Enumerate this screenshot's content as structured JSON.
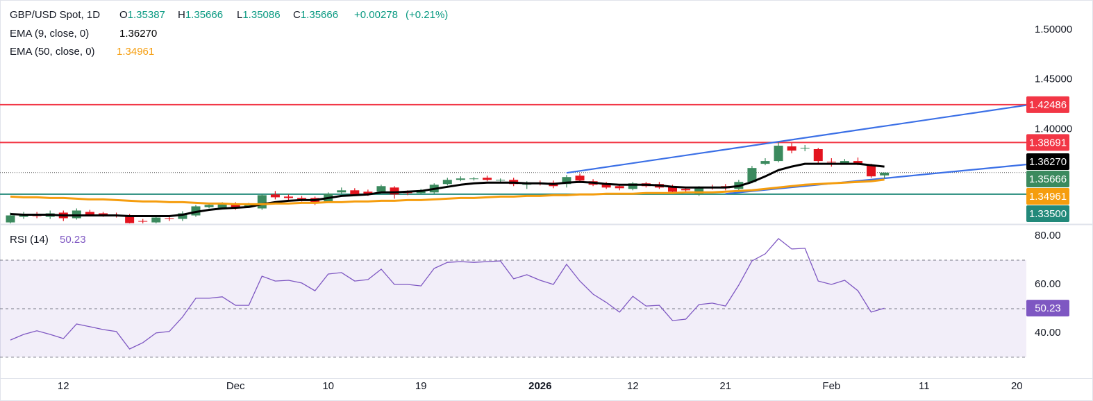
{
  "chart_data": [
    {
      "type": "candlestick",
      "symbol": "GBP/USD Spot, 1D",
      "ohlc_letters": [
        "O",
        "H",
        "L",
        "C"
      ],
      "change": "+0.00278",
      "change_pct": "(+0.21%)",
      "up_color": "#3b8a5e",
      "down_color": "#e3131e",
      "open": [
        1.3067,
        1.3123,
        1.3151,
        1.3123,
        1.3165,
        1.3109,
        1.3172,
        1.3158,
        1.3144,
        1.313,
        1.3081,
        1.3067,
        1.3109,
        1.3102,
        1.3137,
        1.3221,
        1.3214,
        1.3249,
        1.3228,
        1.3207,
        1.3347,
        1.3326,
        1.3312,
        1.3312,
        1.3277,
        1.3368,
        1.3389,
        1.3375,
        1.3375,
        1.3417,
        1.3368,
        1.3361,
        1.3368,
        1.3452,
        1.3494,
        1.3501,
        1.3515,
        1.3487,
        1.3494,
        1.3445,
        1.3466,
        1.3466,
        1.3452,
        1.3536,
        1.348,
        1.3459,
        1.3431,
        1.3403,
        1.3459,
        1.3452,
        1.3424,
        1.3403,
        1.3347,
        1.3417,
        1.3431,
        1.3403,
        1.3473,
        1.3655,
        1.3683,
        1.383,
        1.3809,
        1.3802,
        1.3676,
        1.3662,
        1.3683,
        1.3641,
        1.35387,
        null,
        null,
        null,
        null,
        null,
        null,
        null,
        null,
        null,
        null
      ],
      "high": [
        1.3165,
        1.3172,
        1.3172,
        1.3186,
        1.3186,
        1.3207,
        1.3193,
        1.3172,
        1.3165,
        1.3151,
        1.3102,
        1.313,
        1.313,
        1.3179,
        1.3242,
        1.3263,
        1.327,
        1.327,
        1.3263,
        1.3354,
        1.3382,
        1.3347,
        1.3333,
        1.3326,
        1.3368,
        1.3417,
        1.341,
        1.3396,
        1.3445,
        1.3431,
        1.3389,
        1.3403,
        1.3459,
        1.3515,
        1.3529,
        1.3522,
        1.3536,
        1.3508,
        1.3515,
        1.348,
        1.3487,
        1.3487,
        1.3543,
        1.3557,
        1.3501,
        1.3473,
        1.3445,
        1.3473,
        1.3473,
        1.3473,
        1.3445,
        1.3424,
        1.3431,
        1.3445,
        1.3452,
        1.3494,
        1.3634,
        1.3711,
        1.3872,
        1.3865,
        1.3844,
        1.3816,
        1.3711,
        1.3704,
        1.3718,
        1.3655,
        1.35666,
        null,
        null,
        null,
        null,
        null,
        null,
        null,
        null,
        null,
        null
      ],
      "low": [
        1.3046,
        1.3102,
        1.3109,
        1.3102,
        1.3081,
        1.3095,
        1.313,
        1.3123,
        1.3116,
        1.3046,
        1.3053,
        1.3053,
        1.3081,
        1.3081,
        1.3123,
        1.3207,
        1.32,
        1.3193,
        1.3214,
        1.3193,
        1.3298,
        1.3291,
        1.3277,
        1.3242,
        1.3263,
        1.3354,
        1.3333,
        1.3333,
        1.3361,
        1.3305,
        1.334,
        1.3347,
        1.3354,
        1.3438,
        1.348,
        1.3487,
        1.348,
        1.3473,
        1.3431,
        1.3403,
        1.3438,
        1.341,
        1.3417,
        1.3466,
        1.3431,
        1.3403,
        1.3389,
        1.3389,
        1.3417,
        1.3403,
        1.3361,
        1.3368,
        1.3333,
        1.3396,
        1.3389,
        1.3389,
        1.3459,
        1.3641,
        1.3669,
        1.376,
        1.3781,
        1.3662,
        1.3627,
        1.3655,
        1.3641,
        1.3515,
        1.35086,
        null,
        null,
        null,
        null,
        null,
        null,
        null,
        null,
        null,
        null
      ],
      "close": [
        1.3137,
        1.3151,
        1.313,
        1.3158,
        1.3109,
        1.3186,
        1.3144,
        1.3137,
        1.313,
        1.306,
        1.3074,
        1.3116,
        1.3102,
        1.3158,
        1.3228,
        1.3242,
        1.3249,
        1.3207,
        1.3249,
        1.334,
        1.3319,
        1.3312,
        1.3298,
        1.3263,
        1.3354,
        1.3389,
        1.3347,
        1.3354,
        1.3431,
        1.3347,
        1.3361,
        1.3382,
        1.3445,
        1.3494,
        1.3508,
        1.3508,
        1.3494,
        1.3494,
        1.3452,
        1.3459,
        1.3452,
        1.3431,
        1.3522,
        1.3487,
        1.3445,
        1.3417,
        1.341,
        1.3459,
        1.3431,
        1.3417,
        1.3375,
        1.3389,
        1.341,
        1.341,
        1.341,
        1.3473,
        1.3613,
        1.3683,
        1.3837,
        1.3788,
        1.3816,
        1.3683,
        1.3669,
        1.3683,
        1.3655,
        1.3529,
        1.35666,
        null,
        null,
        null,
        null,
        null,
        null,
        null,
        null,
        null,
        null
      ],
      "series": [
        {
          "name": "EMA (9, close, 0)",
          "color": "#000000",
          "last_label": "1.36270",
          "values": [
            1.3151,
            1.3144,
            1.3144,
            1.3144,
            1.3137,
            1.3137,
            1.3137,
            1.3137,
            1.3137,
            1.313,
            1.313,
            1.313,
            1.313,
            1.3144,
            1.3172,
            1.3193,
            1.3207,
            1.3214,
            1.3221,
            1.3249,
            1.327,
            1.3284,
            1.3291,
            1.3291,
            1.3312,
            1.3333,
            1.334,
            1.3347,
            1.3368,
            1.3368,
            1.3375,
            1.3382,
            1.3403,
            1.3424,
            1.3445,
            1.3459,
            1.3466,
            1.3466,
            1.3466,
            1.3459,
            1.3459,
            1.3452,
            1.3466,
            1.3473,
            1.3466,
            1.3452,
            1.3445,
            1.3445,
            1.3445,
            1.3438,
            1.3424,
            1.3417,
            1.3417,
            1.3417,
            1.3417,
            1.3431,
            1.3473,
            1.3529,
            1.3592,
            1.3627,
            1.3655,
            1.3655,
            1.3655,
            1.3655,
            1.3655,
            1.3641,
            1.3627,
            null,
            null,
            null,
            null,
            null,
            null,
            null,
            null,
            null,
            null
          ]
        },
        {
          "name": "EMA (50, close, 0)",
          "color": "#f59d0e",
          "last_label": "1.34961",
          "values": [
            1.3326,
            1.3319,
            1.3319,
            1.3312,
            1.3312,
            1.3305,
            1.3298,
            1.3298,
            1.3291,
            1.3284,
            1.3277,
            1.3277,
            1.327,
            1.327,
            1.3263,
            1.3256,
            1.3256,
            1.3249,
            1.3249,
            1.3249,
            1.3256,
            1.3256,
            1.3263,
            1.3263,
            1.327,
            1.327,
            1.3277,
            1.3277,
            1.3284,
            1.3284,
            1.3291,
            1.3291,
            1.3298,
            1.3305,
            1.3312,
            1.3312,
            1.3319,
            1.3326,
            1.3326,
            1.3333,
            1.3333,
            1.334,
            1.334,
            1.3347,
            1.3347,
            1.3354,
            1.3354,
            1.3354,
            1.3361,
            1.3361,
            1.3361,
            1.3368,
            1.3368,
            1.3368,
            1.3375,
            1.3382,
            1.3389,
            1.3403,
            1.3417,
            1.3431,
            1.3445,
            1.3452,
            1.3459,
            1.3466,
            1.3473,
            1.348,
            1.34961,
            null,
            null,
            null,
            null,
            null,
            null,
            null,
            null,
            null,
            null
          ]
        }
      ],
      "levels": [
        {
          "value": 1.42486,
          "label": "1.42486",
          "color": "#f23645"
        },
        {
          "value": 1.38691,
          "label": "1.38691",
          "color": "#f23645"
        },
        {
          "value": 1.335,
          "label": "1.33500",
          "color": "#22897a"
        }
      ],
      "trendlines": [
        {
          "x": [
            42,
            76.7
          ],
          "values": [
            1.3564,
            1.4243
          ],
          "color": "#3a6fe6"
        },
        {
          "x": [
            54,
            76.7
          ],
          "values": [
            1.3354,
            1.3648
          ],
          "color": "#3a6fe6"
        }
      ],
      "ylim": [
        1.3057,
        1.5299
      ],
      "yticks": [
        {
          "value": 1.5,
          "label": "1.50000"
        },
        {
          "value": 1.45,
          "label": "1.45000"
        },
        {
          "value": 1.4,
          "label": "1.40000"
        }
      ],
      "grid": false
    },
    {
      "type": "line",
      "series": [
        {
          "name": "RSI (14)",
          "color": "#7e57c2",
          "values": [
            37.1,
            39.4,
            40.9,
            39.4,
            37.7,
            43.7,
            42.6,
            41.4,
            40.6,
            33.4,
            36.0,
            40.0,
            40.6,
            46.6,
            54.3,
            54.3,
            54.9,
            51.4,
            51.4,
            63.4,
            61.4,
            61.7,
            60.6,
            57.4,
            64.3,
            64.9,
            61.4,
            62.0,
            66.3,
            60.0,
            60.0,
            59.4,
            66.6,
            69.1,
            69.4,
            69.1,
            69.4,
            69.7,
            62.3,
            64.0,
            61.7,
            60.0,
            68.3,
            61.4,
            56.0,
            52.6,
            48.6,
            55.1,
            51.1,
            51.4,
            45.1,
            45.7,
            51.7,
            52.3,
            51.1,
            59.7,
            69.7,
            72.6,
            78.9,
            74.6,
            74.9,
            61.4,
            60.0,
            61.7,
            57.4,
            48.6,
            50.23,
            null,
            null,
            null,
            null,
            null,
            null,
            null,
            null,
            null,
            null
          ]
        }
      ],
      "band": [
        30,
        70
      ],
      "midline": 50,
      "ylim": [
        21.4,
        84.3
      ],
      "yticks": [
        {
          "value": 80,
          "label": "80.00"
        },
        {
          "value": 60,
          "label": "60.00"
        },
        {
          "value": 40,
          "label": "40.00"
        }
      ],
      "categories": [
        null,
        null,
        null,
        null,
        "12",
        null,
        null,
        null,
        null,
        null,
        null,
        null,
        null,
        null,
        null,
        null,
        null,
        "Dec",
        null,
        null,
        null,
        null,
        null,
        null,
        "10",
        null,
        null,
        null,
        null,
        null,
        null,
        "19",
        null,
        null,
        null,
        null,
        null,
        null,
        null,
        null,
        "2026",
        null,
        null,
        null,
        null,
        null,
        null,
        "12",
        null,
        null,
        null,
        null,
        null,
        null,
        "21",
        null,
        null,
        null,
        null,
        null,
        null,
        null,
        "Feb",
        null,
        null,
        null,
        null,
        null,
        null,
        "11",
        null,
        null,
        null,
        null,
        null,
        null,
        "20"
      ]
    }
  ]
}
